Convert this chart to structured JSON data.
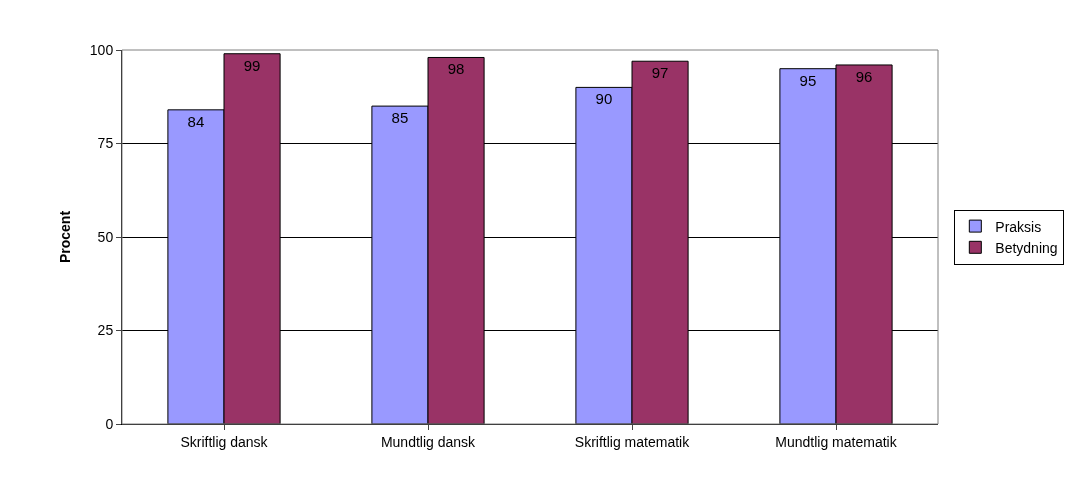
{
  "chart_data": {
    "type": "bar",
    "ylabel": "Procent",
    "categories": [
      "Skriftlig dansk",
      "Mundtlig dansk",
      "Skriftlig matematik",
      "Mundtlig matematik"
    ],
    "series": [
      {
        "name": "Praksis",
        "color": "#9999ff",
        "values": [
          84,
          85,
          90,
          95
        ]
      },
      {
        "name": "Betydning",
        "color": "#993366",
        "values": [
          99,
          98,
          97,
          96
        ]
      }
    ],
    "ylim": [
      0,
      100
    ],
    "yticks": [
      0,
      25,
      50,
      75,
      100
    ],
    "grid": "y",
    "legend": "right",
    "data_labels": true
  }
}
